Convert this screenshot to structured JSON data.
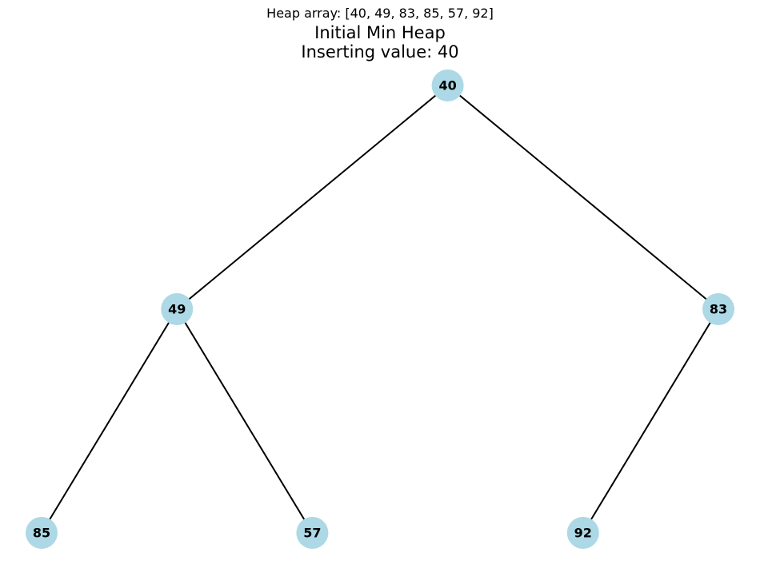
{
  "heap_array_caption": "Heap array: [40, 49, 83, 85, 57, 92]",
  "title": "Initial Min Heap",
  "subtitle": "Inserting value: 40",
  "heap": [
    40,
    49,
    83,
    85,
    57,
    92
  ],
  "colors": {
    "node_fill": "#add8e6",
    "edge": "#000000",
    "text": "#000000"
  }
}
